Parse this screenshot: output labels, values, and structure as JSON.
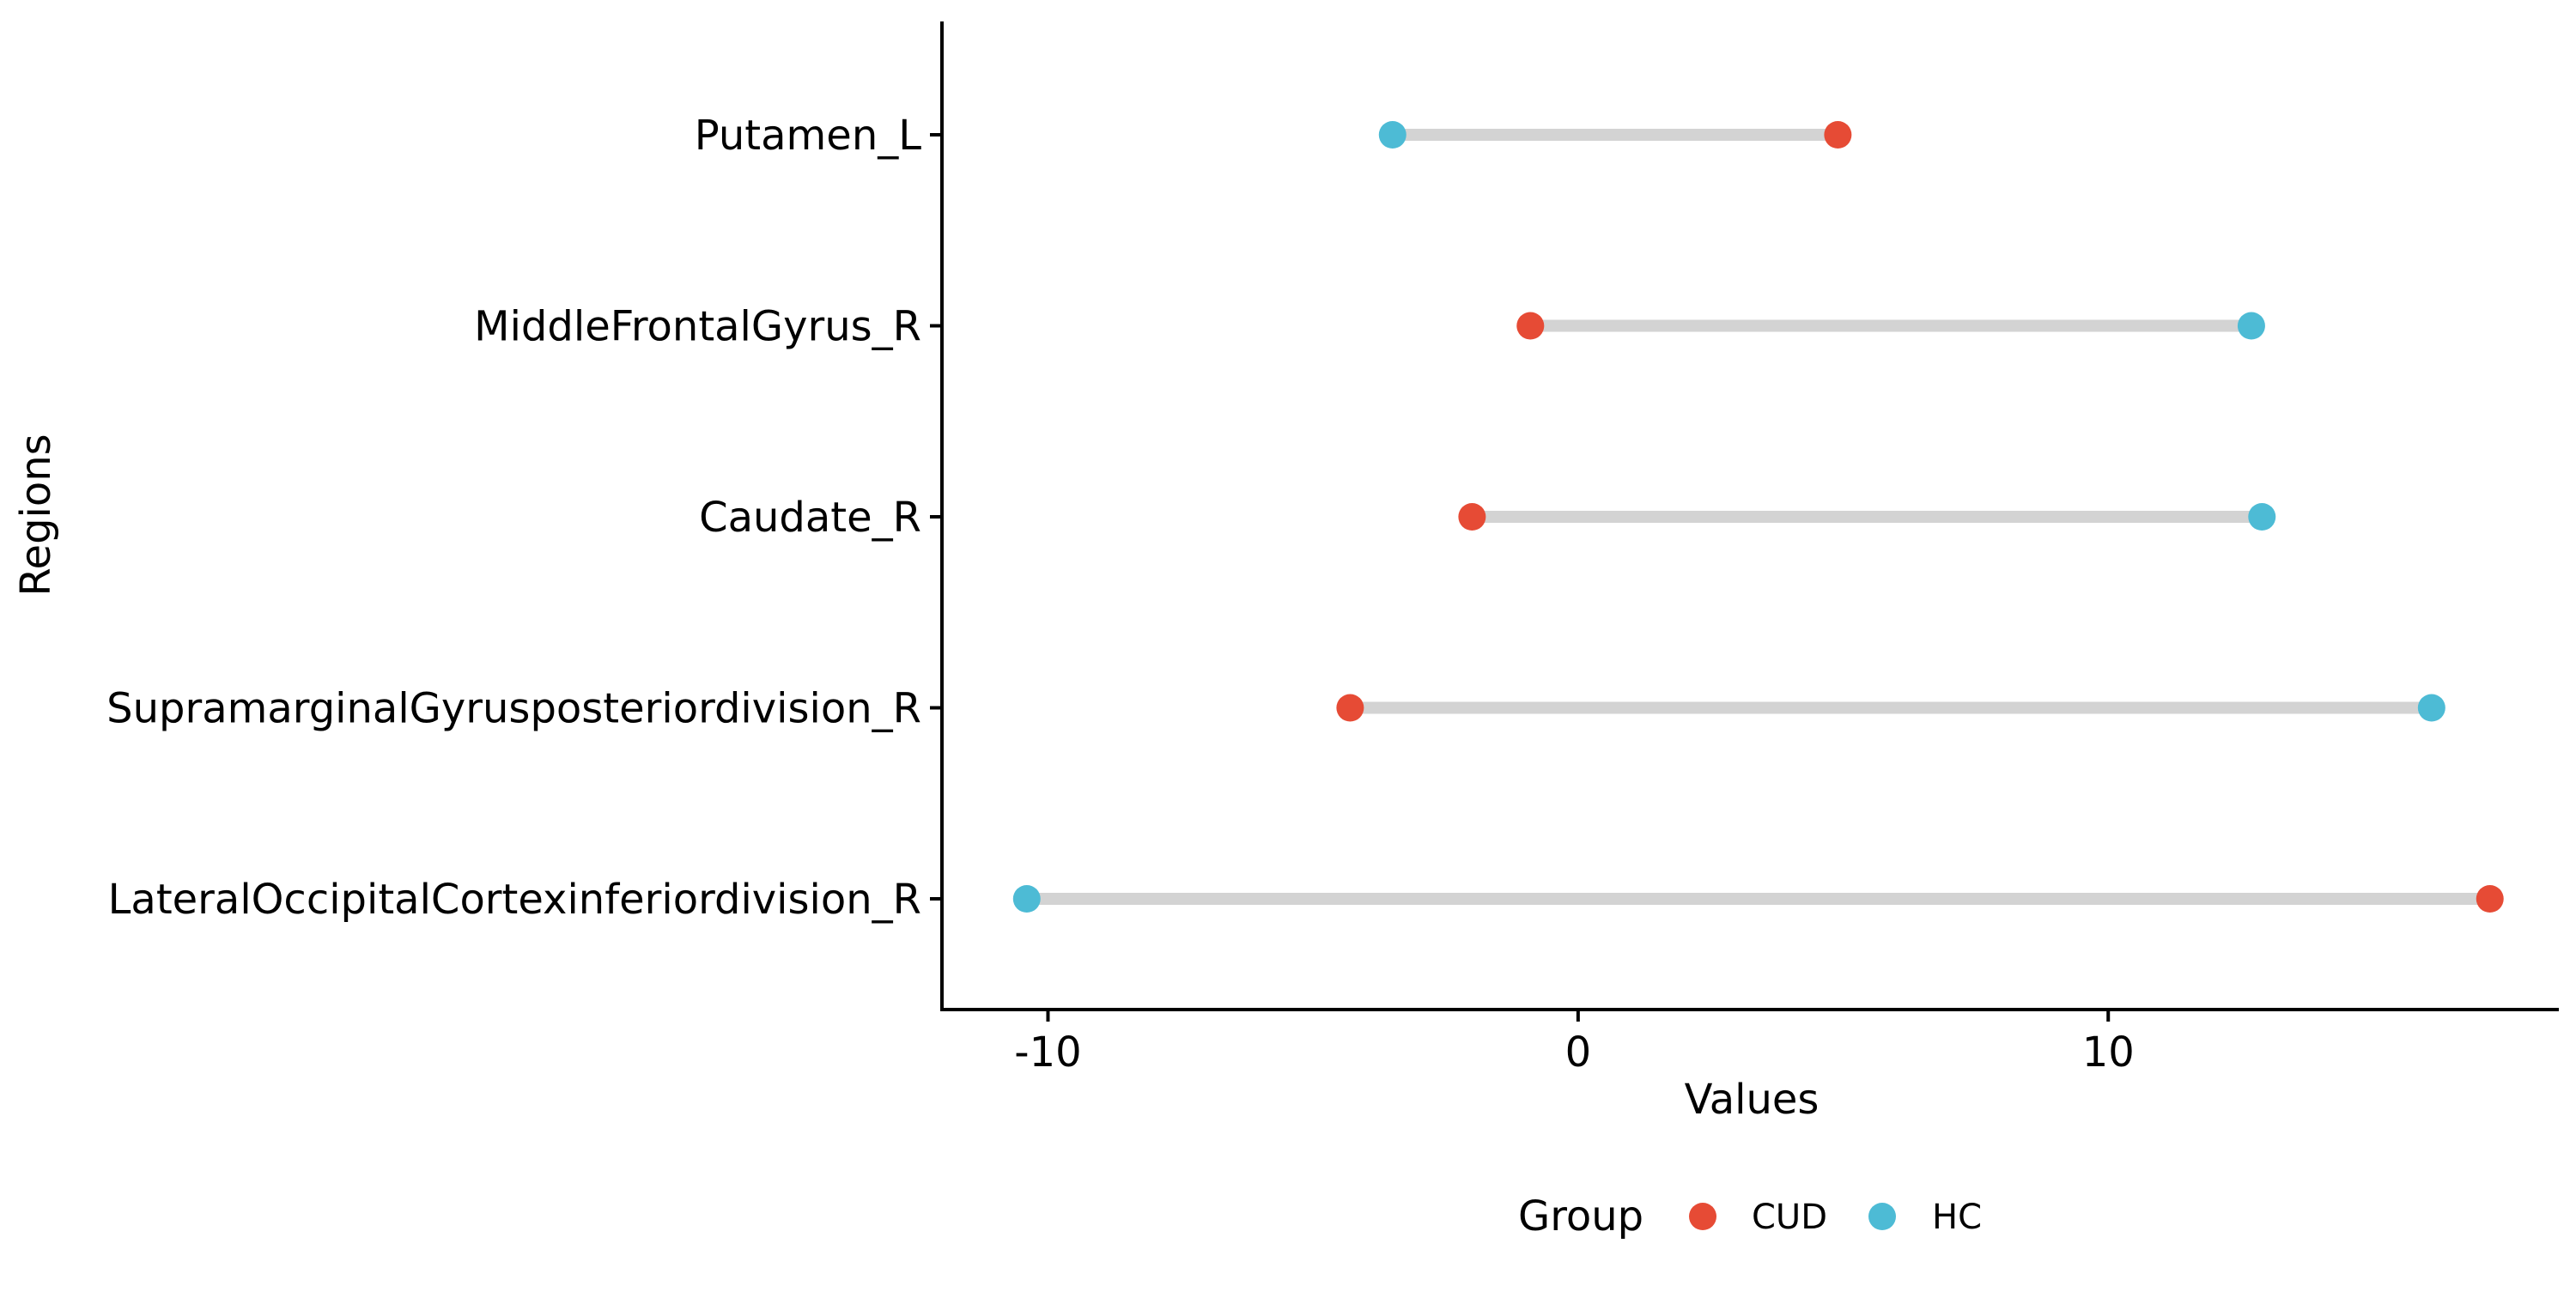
{
  "chart_data": {
    "type": "dumbbell",
    "xlabel": "Values",
    "ylabel": "Regions",
    "xlim": [
      -12,
      18.5
    ],
    "x_ticks": [
      -10,
      0,
      10
    ],
    "x_tick_labels": [
      "-10",
      "0",
      "10"
    ],
    "grid": false,
    "legend": {
      "title": "Group",
      "placement": "bottom",
      "entries": [
        {
          "name": "CUD",
          "color": "#E64B35"
        },
        {
          "name": "HC",
          "color": "#4DBBD5"
        }
      ]
    },
    "categories": [
      "Putamen_L",
      "MiddleFrontalGyrus_R",
      "Caudate_R",
      "SupramarginalGyrusposteriordivision_R",
      "LateralOccipitalCortexinferiordivision_R"
    ],
    "series": [
      {
        "name": "CUD",
        "color": "#E64B35",
        "values": [
          4.9,
          -0.9,
          -2.0,
          -4.3,
          17.2
        ]
      },
      {
        "name": "HC",
        "color": "#4DBBD5",
        "values": [
          -3.5,
          12.7,
          12.9,
          16.1,
          -10.4
        ]
      }
    ],
    "segment_color": "#D3D3D3"
  }
}
